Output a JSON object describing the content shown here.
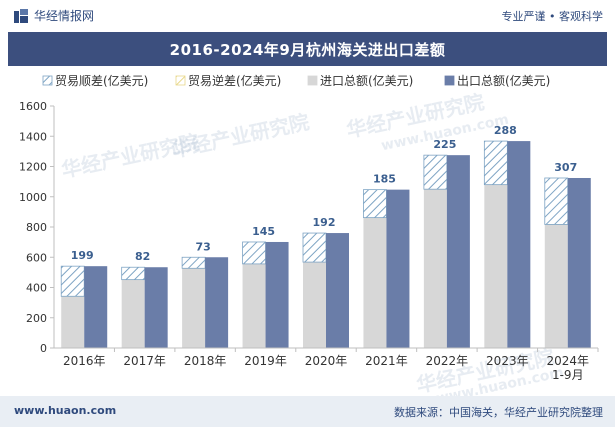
{
  "header": {
    "brand": "华经情报网",
    "tagline": "专业严谨 • 客观科学"
  },
  "title": "2016-2024年9月杭州海关进出口差额",
  "footer": {
    "website": "www.huaon.com",
    "source": "数据来源：中国海关，华经产业研究院整理"
  },
  "watermarks": [
    "华经产业研究院",
    "www.huaon.com"
  ],
  "colors": {
    "title_bg": "#3c4f7e",
    "export": "#6a7da8",
    "import": "#d7d7d7",
    "surplus_hatch": "#7ea4c4",
    "deficit_hatch": "#e8d88a",
    "label": "#3b5f8f"
  },
  "chart_data": {
    "type": "bar",
    "categories": [
      "2016年",
      "2017年",
      "2018年",
      "2019年",
      "2020年",
      "2021年",
      "2022年",
      "2023年",
      "2024年\n1-9月"
    ],
    "series": [
      {
        "name": "贸易顺差(亿美元)",
        "values": [
          199,
          82,
          73,
          145,
          192,
          185,
          225,
          288,
          307
        ]
      },
      {
        "name": "贸易逆差(亿美元)",
        "values": [
          0,
          0,
          0,
          0,
          0,
          0,
          0,
          0,
          0
        ]
      },
      {
        "name": "进口总额(亿美元)",
        "values": [
          342,
          452,
          527,
          556,
          568,
          862,
          1050,
          1080,
          817
        ]
      },
      {
        "name": "出口总额(亿美元)",
        "values": [
          541,
          534,
          600,
          701,
          760,
          1047,
          1275,
          1368,
          1124
        ]
      }
    ],
    "ylim": [
      0,
      1600
    ],
    "yticks": [
      0,
      200,
      400,
      600,
      800,
      1000,
      1200,
      1400,
      1600
    ],
    "legend_position": "top",
    "grid": false
  }
}
